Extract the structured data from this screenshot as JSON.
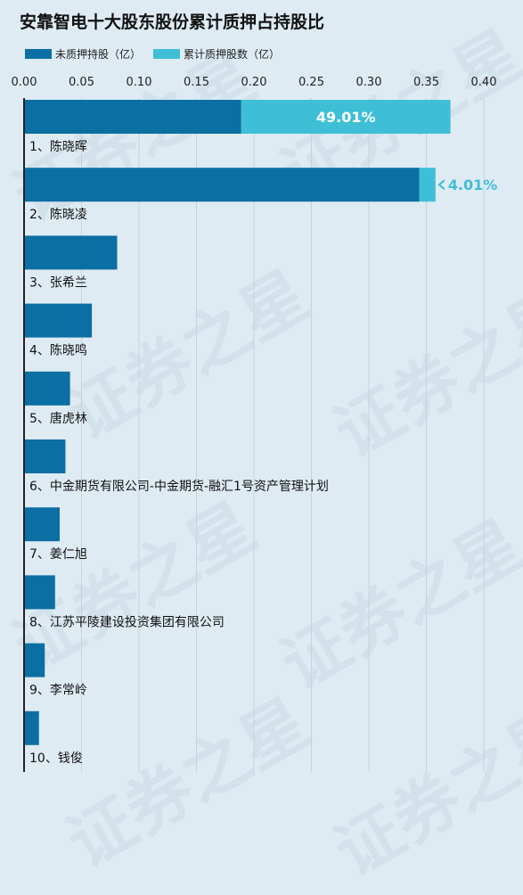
{
  "title": "安靠智电十大股东股份累计质押占持股比",
  "legend": {
    "unpledged": "未质押持股（亿）",
    "pledged": "累计质押股数（亿）"
  },
  "colors": {
    "unpledged": "#0b6fa4",
    "pledged": "#3fbfd6",
    "axis": "#222222",
    "grid": "#c4d3dd",
    "background": "#deebf3"
  },
  "watermark": "证券之星",
  "chart_data": {
    "type": "bar",
    "orientation": "horizontal",
    "stacked": true,
    "xlim": [
      0,
      0.4
    ],
    "xticks": [
      "0.00",
      "0.05",
      "0.10",
      "0.15",
      "0.20",
      "0.25",
      "0.30",
      "0.35",
      "0.40"
    ],
    "grid": true,
    "legend_position": "top-left",
    "categories": [
      "1、陈晓晖",
      "2、陈晓凌",
      "3、张希兰",
      "4、陈晓鸣",
      "5、唐虎林",
      "6、中金期货有限公司-中金期货-融汇1号资产管理计划",
      "7、姜仁旭",
      "8、江苏平陵建设投资集团有限公司",
      "9、李常岭",
      "10、钱俊"
    ],
    "series": [
      {
        "name": "未质押持股（亿）",
        "values": [
          0.189,
          0.344,
          0.081,
          0.059,
          0.04,
          0.036,
          0.031,
          0.027,
          0.018,
          0.013
        ]
      },
      {
        "name": "累计质押股数（亿）",
        "values": [
          0.182,
          0.014,
          0,
          0,
          0,
          0,
          0,
          0,
          0,
          0
        ]
      }
    ],
    "annotations": [
      {
        "category_index": 0,
        "text": "49.01%"
      },
      {
        "category_index": 1,
        "text": "4.01%"
      }
    ]
  }
}
